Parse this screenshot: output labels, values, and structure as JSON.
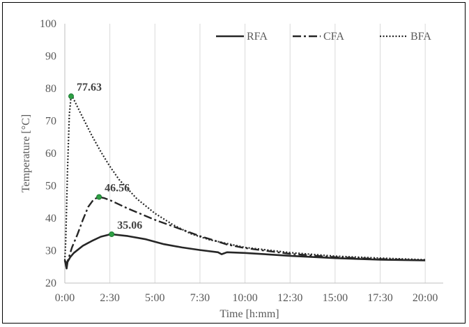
{
  "chart_data": {
    "type": "line",
    "xlabel": "Time [h:mm]",
    "ylabel": "Temperature [°C]",
    "x_unit": "hours",
    "xlim": [
      0,
      21
    ],
    "ylim": [
      20,
      100
    ],
    "x_tick_values": [
      0,
      2.5,
      5,
      7.5,
      10,
      12.5,
      15,
      17.5,
      20
    ],
    "x_tick_labels": [
      "0:00",
      "2:30",
      "5:00",
      "7:30",
      "10:00",
      "12:30",
      "15:00",
      "17:30",
      "20:00"
    ],
    "y_ticks": [
      20,
      30,
      40,
      50,
      60,
      70,
      80,
      90,
      100
    ],
    "grid": "vertical",
    "legend_position": "top-right",
    "series": [
      {
        "name": "RFA",
        "style": "solid",
        "color": "#262626",
        "x": [
          0,
          0.1,
          0.15,
          0.3,
          0.5,
          1.0,
          1.5,
          2.0,
          2.5,
          2.6,
          3.5,
          4.5,
          5.5,
          6.5,
          7.5,
          8.5,
          8.7,
          9.0,
          10,
          12.5,
          15,
          17.5,
          20
        ],
        "y": [
          27.0,
          24.5,
          26.5,
          28.0,
          29.3,
          31.5,
          33.0,
          34.3,
          35.0,
          35.06,
          34.5,
          33.5,
          32.0,
          31.0,
          30.2,
          29.5,
          28.9,
          29.5,
          29.3,
          28.4,
          27.7,
          27.2,
          27.0
        ]
      },
      {
        "name": "CFA",
        "style": "dashdot",
        "color": "#262626",
        "x": [
          0,
          0.1,
          0.2,
          0.4,
          0.7,
          1.0,
          1.3,
          1.6,
          1.9,
          2.2,
          2.5,
          3.5,
          5.0,
          6.5,
          7.5,
          8.5,
          9.0,
          10,
          12.5,
          15,
          17.5,
          20
        ],
        "y": [
          27.0,
          26.0,
          27.5,
          31.0,
          35.0,
          39.5,
          43.5,
          45.8,
          46.56,
          46.2,
          45.6,
          43.0,
          39.5,
          36.5,
          34.5,
          32.8,
          31.9,
          30.8,
          29.0,
          28.0,
          27.4,
          27.0
        ]
      },
      {
        "name": "BFA",
        "style": "dotted",
        "color": "#262626",
        "x": [
          0,
          0.05,
          0.15,
          0.25,
          0.35,
          0.45,
          0.6,
          1.0,
          1.5,
          2.0,
          2.5,
          3.0,
          4.0,
          5.0,
          6.0,
          7.0,
          8.0,
          9.0,
          10,
          12.5,
          15,
          17.5,
          20
        ],
        "y": [
          27.0,
          33.0,
          55.0,
          72.0,
          77.63,
          77.2,
          75.5,
          71.0,
          65.5,
          60.5,
          56.0,
          52.0,
          46.0,
          41.5,
          38.0,
          35.2,
          33.4,
          32.2,
          31.0,
          29.4,
          28.3,
          27.7,
          27.2
        ]
      }
    ],
    "annotations": [
      {
        "text": "77.63",
        "x": 0.35,
        "y": 77.63
      },
      {
        "text": "46.56",
        "x": 1.9,
        "y": 46.56
      },
      {
        "text": "35.06",
        "x": 2.6,
        "y": 35.06
      }
    ]
  },
  "colors": {
    "line": "#262626",
    "marker": "#2ea043",
    "grid": "#d9d9d9",
    "axis": "#bfbfbf"
  }
}
